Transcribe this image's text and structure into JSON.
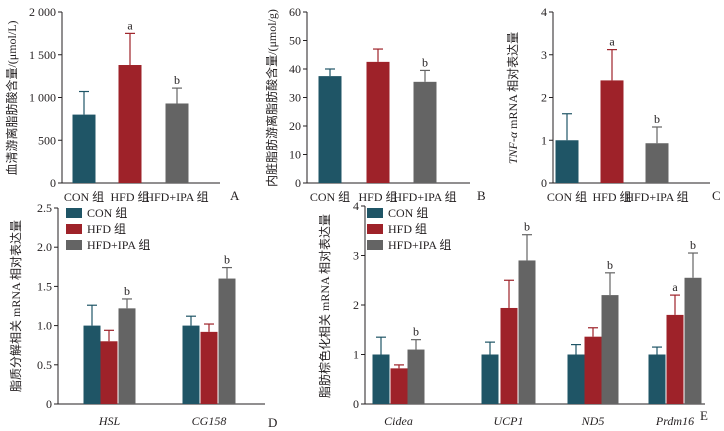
{
  "colors": {
    "con": "#1f5566",
    "hfd": "#9e2229",
    "ipa": "#646464",
    "axis": "#231f20"
  },
  "chart_data": [
    {
      "id": "A",
      "type": "bar",
      "panel_label": "A",
      "ylabel": "血清游离脂肪酸含量/(μmol/L)",
      "ylim": [
        0,
        2000
      ],
      "yticks": [
        "0",
        "500",
        "1 000",
        "1 500",
        "2 000"
      ],
      "categories": [
        "CON 组",
        "HFD 组",
        "HFD+IPA 组"
      ],
      "values": [
        800,
        1380,
        930
      ],
      "errors": [
        270,
        370,
        180
      ],
      "sig": [
        "",
        "a",
        "b"
      ]
    },
    {
      "id": "B",
      "type": "bar",
      "panel_label": "B",
      "ylabel": "内脏脂肪游离脂肪酸含量/(μmol/g)",
      "ylim": [
        0,
        60
      ],
      "yticks": [
        "0",
        "10",
        "20",
        "30",
        "40",
        "50",
        "60"
      ],
      "categories": [
        "CON 组",
        "HFD 组",
        "HFD+IPA 组"
      ],
      "values": [
        37.5,
        42.5,
        35.5
      ],
      "errors": [
        2.5,
        4.5,
        4.0
      ],
      "sig": [
        "",
        "",
        "b"
      ]
    },
    {
      "id": "C",
      "type": "bar",
      "panel_label": "C",
      "ylabel_italic": "TNF-α",
      "ylabel": " mRNA 相对表达量",
      "ylim": [
        0,
        4
      ],
      "yticks": [
        "0",
        "1",
        "2",
        "3",
        "4"
      ],
      "categories": [
        "CON 组",
        "HFD 组",
        "HFD+IPA 组"
      ],
      "values": [
        1.0,
        2.4,
        0.93
      ],
      "errors": [
        0.62,
        0.72,
        0.38
      ],
      "sig": [
        "",
        "a",
        "b"
      ]
    },
    {
      "id": "D",
      "type": "bar",
      "panel_label": "D",
      "ylabel": "脂质分解相关 mRNA 相对表达量",
      "ylim": [
        0,
        2.5
      ],
      "yticks": [
        "0",
        "0.5",
        "1.0",
        "1.5",
        "2.0",
        "2.5"
      ],
      "categories": [
        "HSL",
        "CG158"
      ],
      "legend": [
        "CON 组",
        "HFD 组",
        "HFD+IPA 组"
      ],
      "series": [
        {
          "name": "CON 组",
          "values": [
            1.0,
            1.0
          ],
          "errors": [
            0.26,
            0.12
          ],
          "sig": [
            "",
            ""
          ]
        },
        {
          "name": "HFD 组",
          "values": [
            0.8,
            0.92
          ],
          "errors": [
            0.14,
            0.1
          ],
          "sig": [
            "",
            ""
          ]
        },
        {
          "name": "HFD+IPA 组",
          "values": [
            1.22,
            1.6
          ],
          "errors": [
            0.12,
            0.14
          ],
          "sig": [
            "b",
            "b"
          ]
        }
      ]
    },
    {
      "id": "E",
      "type": "bar",
      "panel_label": "E",
      "ylabel": "脂肪棕色化相关 mRNA 相对表达量",
      "ylim": [
        0,
        4
      ],
      "yticks": [
        "0",
        "1",
        "2",
        "3",
        "4"
      ],
      "categories": [
        "Cidea",
        "UCP1",
        "ND5",
        "Prdm16"
      ],
      "legend": [
        "CON 组",
        "HFD 组",
        "HFD+IPA 组"
      ],
      "series": [
        {
          "name": "CON 组",
          "values": [
            1.0,
            1.0,
            1.0,
            1.0
          ],
          "errors": [
            0.35,
            0.25,
            0.2,
            0.15
          ],
          "sig": [
            "",
            "",
            "",
            ""
          ]
        },
        {
          "name": "HFD 组",
          "values": [
            0.72,
            1.94,
            1.36,
            1.8
          ],
          "errors": [
            0.07,
            0.56,
            0.18,
            0.4
          ],
          "sig": [
            "",
            "",
            "",
            "a"
          ]
        },
        {
          "name": "HFD+IPA 组",
          "values": [
            1.1,
            2.9,
            2.2,
            2.55
          ],
          "errors": [
            0.2,
            0.52,
            0.45,
            0.5
          ],
          "sig": [
            "b",
            "b",
            "b",
            "b"
          ]
        }
      ]
    }
  ]
}
